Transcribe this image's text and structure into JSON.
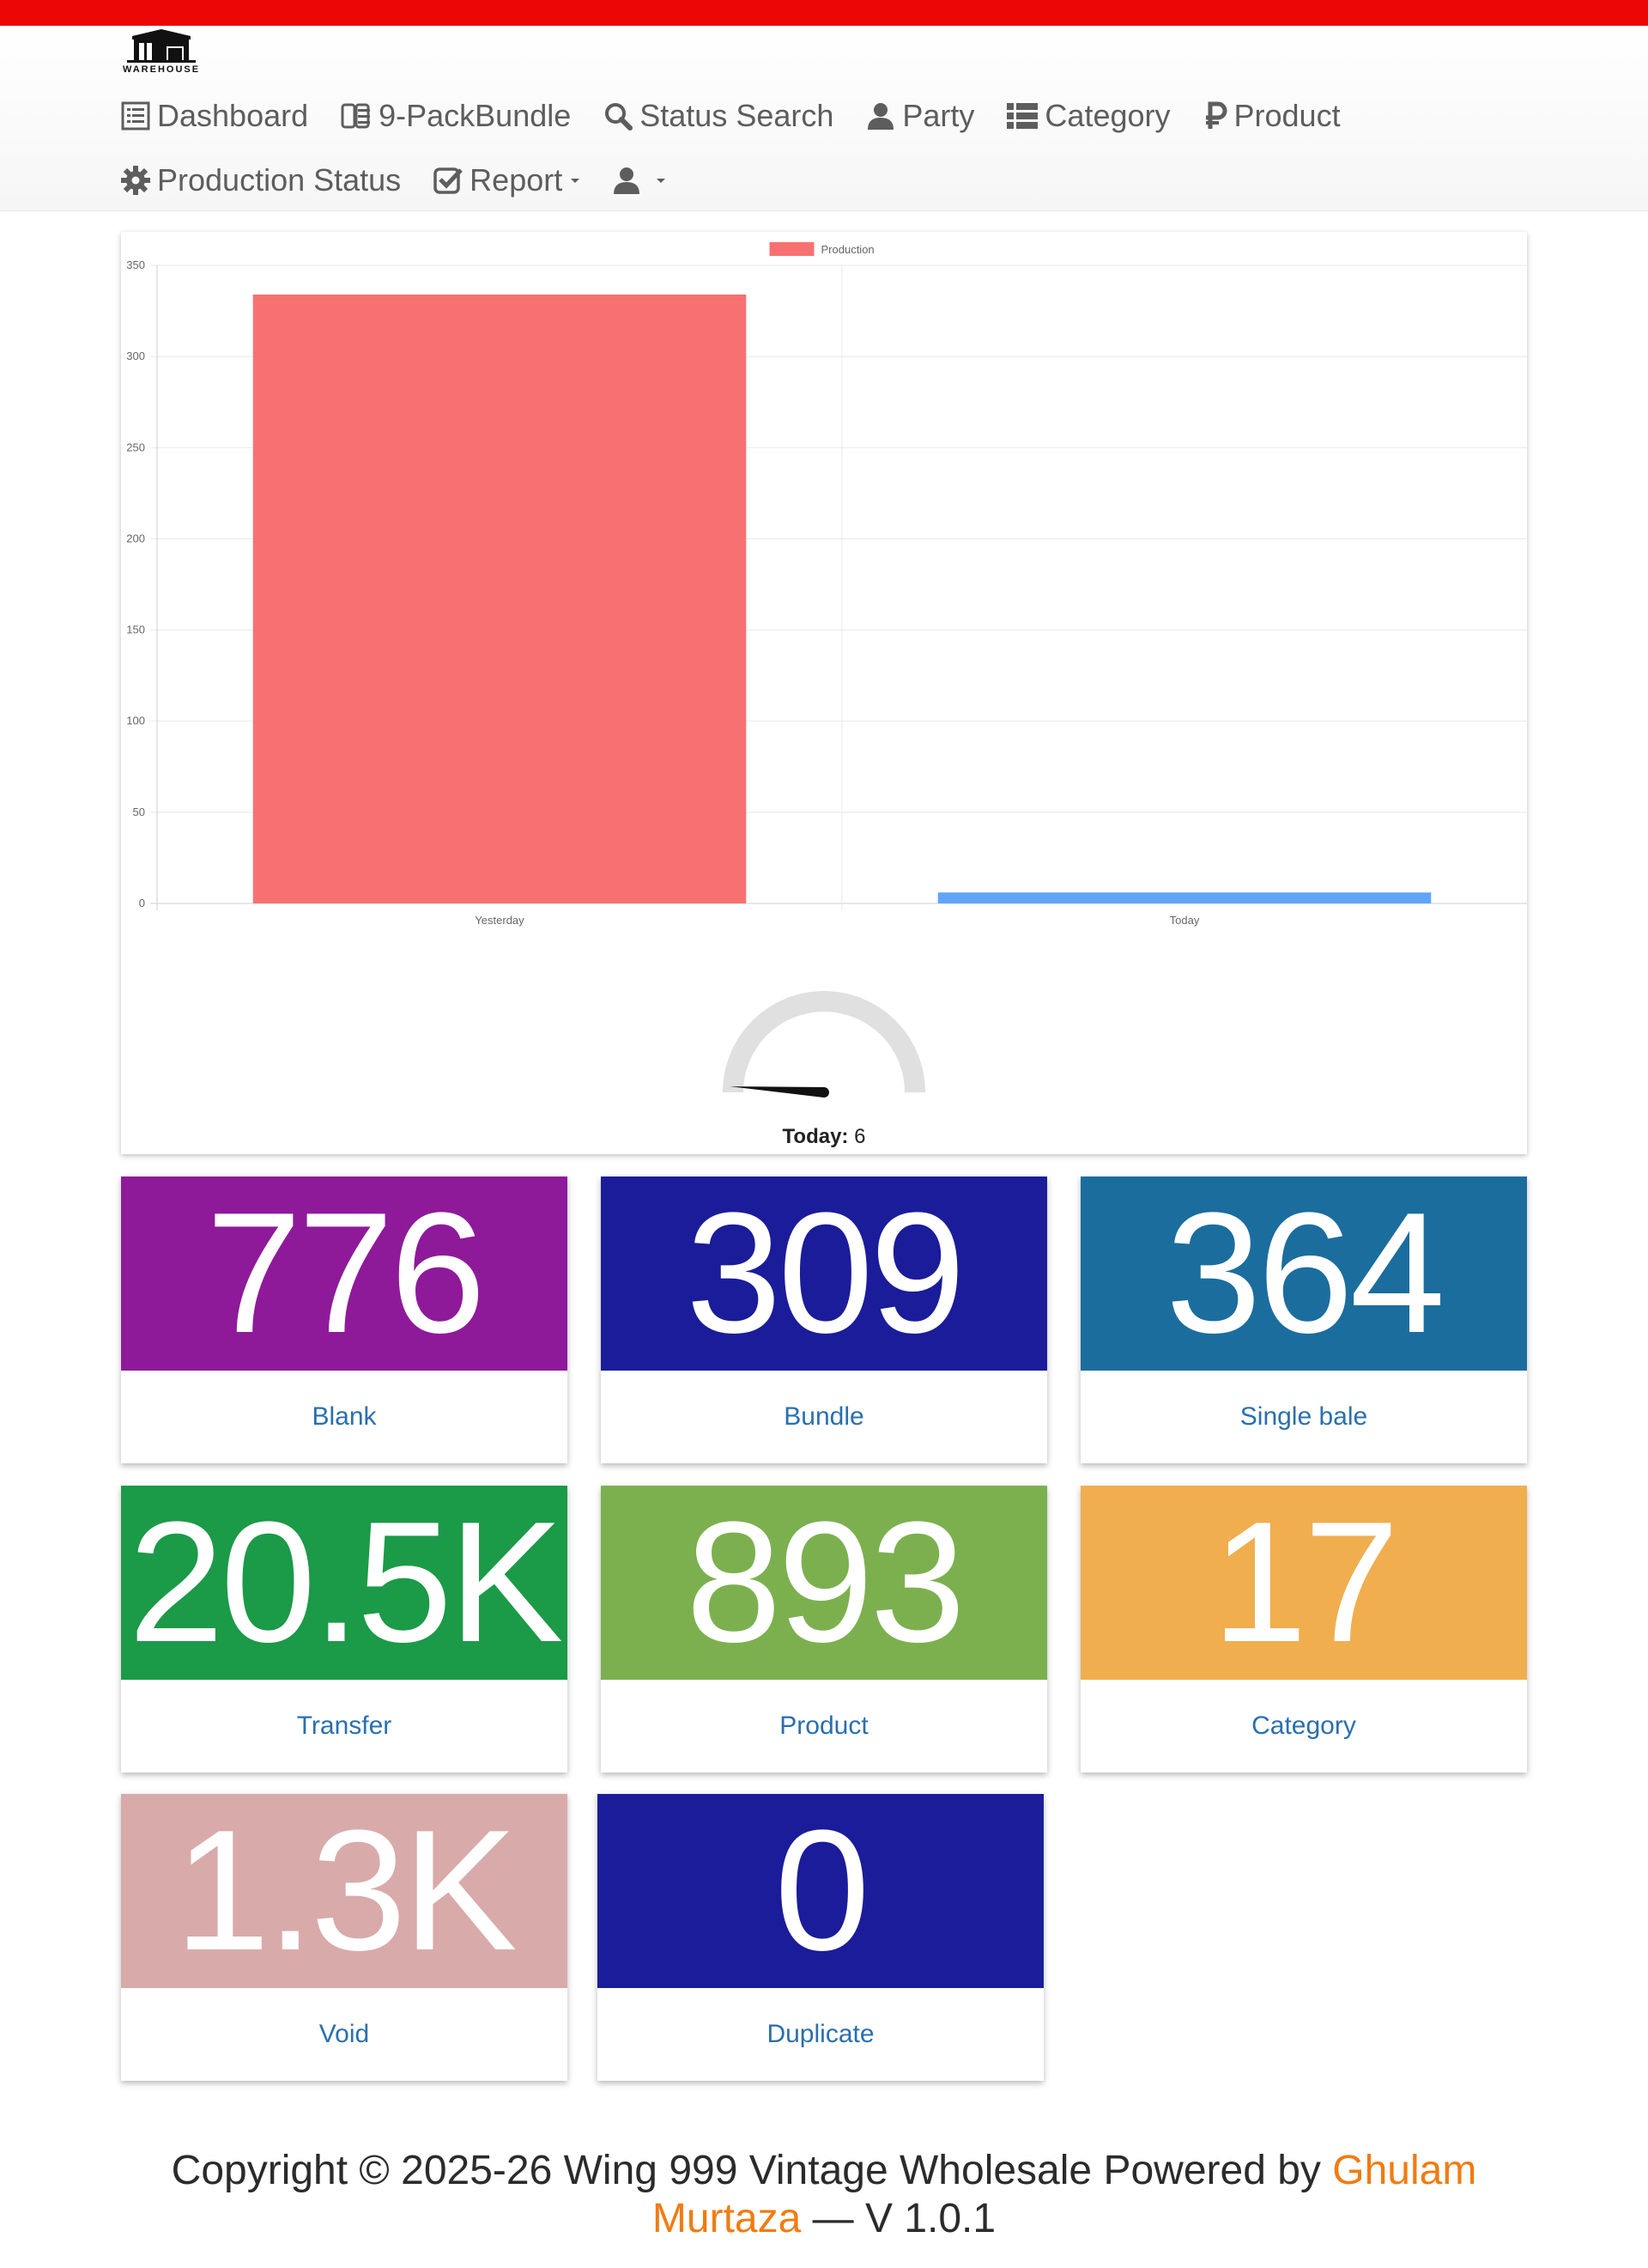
{
  "brand": {
    "logo_text": "WAREHOUSE",
    "accent": "#ec0606"
  },
  "nav": {
    "row1": [
      {
        "label": "Dashboard",
        "icon": "list-alt-icon"
      },
      {
        "label": "9-PackBundle",
        "icon": "boxes-icon"
      },
      {
        "label": "Status Search",
        "icon": "search-icon"
      },
      {
        "label": "Party",
        "icon": "user-icon"
      },
      {
        "label": "Category",
        "icon": "th-list-icon"
      },
      {
        "label": "Product",
        "icon": "ruble-icon"
      }
    ],
    "row2": [
      {
        "label": "Production Status",
        "icon": "gear-icon"
      },
      {
        "label": "Report",
        "icon": "check-square-icon"
      },
      {
        "label": "",
        "icon": "user-icon"
      }
    ]
  },
  "chart_data": {
    "type": "bar",
    "categories": [
      "Yesterday",
      "Today"
    ],
    "series": [
      {
        "name": "Production",
        "values": [
          334,
          6
        ]
      }
    ],
    "bar_colors": [
      "#f87171",
      "#60a5fa"
    ],
    "ylim": [
      0,
      350
    ],
    "yticks": [
      0,
      50,
      100,
      150,
      200,
      250,
      300,
      350
    ],
    "grid": true,
    "legend": "top-center"
  },
  "gauge": {
    "label": "Today:",
    "value": "6",
    "fraction": 0.02
  },
  "cards": [
    {
      "value": "776",
      "label": "Blank",
      "color": "#8e1a9a"
    },
    {
      "value": "309",
      "label": "Bundle",
      "color": "#1b1c9a"
    },
    {
      "value": "364",
      "label": "Single bale",
      "color": "#1b6d9e"
    },
    {
      "value": "20.5K",
      "label": "Transfer",
      "color": "#1b9a48"
    },
    {
      "value": "893",
      "label": "Product",
      "color": "#7cb04f"
    },
    {
      "value": "17",
      "label": "Category",
      "color": "#f0ae4f"
    },
    {
      "value": "1.3K",
      "label": "Void",
      "color": "#d9aaaa"
    },
    {
      "value": "0",
      "label": "Duplicate",
      "color": "#1b1c9a"
    }
  ],
  "footer": {
    "text_before": "Copyright © 2025-26 Wing 999 Vintage Wholesale Powered by ",
    "link": "Ghulam Murtaza",
    "text_after": " — V 1.0.1"
  }
}
